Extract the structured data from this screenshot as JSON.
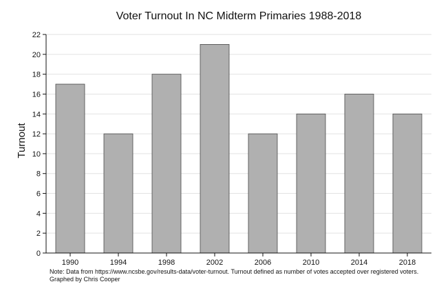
{
  "chart_data": {
    "type": "bar",
    "title": "Voter Turnout In NC Midterm Primaries 1988-2018",
    "xlabel": "",
    "ylabel": "Turnout",
    "categories": [
      "1990",
      "1994",
      "1998",
      "2002",
      "2006",
      "2010",
      "2014",
      "2018"
    ],
    "values": [
      17,
      12,
      18,
      21,
      12,
      14,
      16,
      14
    ],
    "ylim": [
      0,
      22
    ],
    "yticks": [
      "0",
      "2",
      "4",
      "6",
      "8",
      "10",
      "12",
      "14",
      "16",
      "18",
      "20",
      "22"
    ],
    "grid": true,
    "note_line1": "Note: Data from https://www.ncsbe.gov/results-data/voter-turnout. Turnout defined as number of votes accepted over registered voters.",
    "note_line2": "Graphed by Chris Cooper",
    "bar_color": "#b0b0b0"
  }
}
